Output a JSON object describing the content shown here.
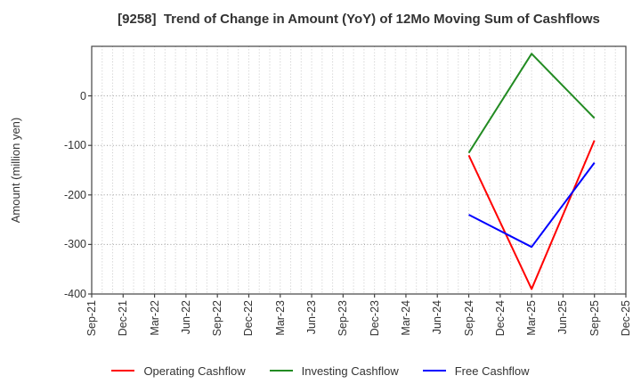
{
  "chart_data": {
    "type": "line",
    "title": "[9258]  Trend of Change in Amount (YoY) of 12Mo Moving Sum of Cashflows",
    "ylabel": "Amount (million yen)",
    "ylim": [
      -400,
      100
    ],
    "y_ticks": [
      0,
      -100,
      -200,
      -300,
      -400
    ],
    "categories": [
      "Sep-21",
      "Dec-21",
      "Mar-22",
      "Jun-22",
      "Sep-22",
      "Dec-22",
      "Mar-23",
      "Jun-23",
      "Sep-23",
      "Dec-23",
      "Mar-24",
      "Jun-24",
      "Sep-24",
      "Dec-24",
      "Mar-25",
      "Jun-25",
      "Sep-25",
      "Dec-25"
    ],
    "minor_v_gridline_intervals": 51,
    "grid": true,
    "legend_position": "bottom-center",
    "series": [
      {
        "name": "Operating Cashflow",
        "color": "#ff0000",
        "x": [
          "Sep-24",
          "Mar-25",
          "Sep-25"
        ],
        "x_indices": [
          12,
          14,
          16
        ],
        "values": [
          -120,
          -390,
          -90
        ]
      },
      {
        "name": "Investing Cashflow",
        "color": "#228b22",
        "x": [
          "Sep-24",
          "Mar-25",
          "Sep-25"
        ],
        "x_indices": [
          12,
          14,
          16
        ],
        "values": [
          -115,
          85,
          -45
        ]
      },
      {
        "name": "Free Cashflow",
        "color": "#0000ff",
        "x": [
          "Sep-24",
          "Mar-25",
          "Sep-25"
        ],
        "x_indices": [
          12,
          14,
          16
        ],
        "values": [
          -240,
          -305,
          -135
        ]
      }
    ],
    "colors": {
      "spine": "#444444",
      "major_grid": "#999999",
      "minor_grid": "#c9c9c9",
      "text": "#333333",
      "background": "#ffffff"
    }
  }
}
